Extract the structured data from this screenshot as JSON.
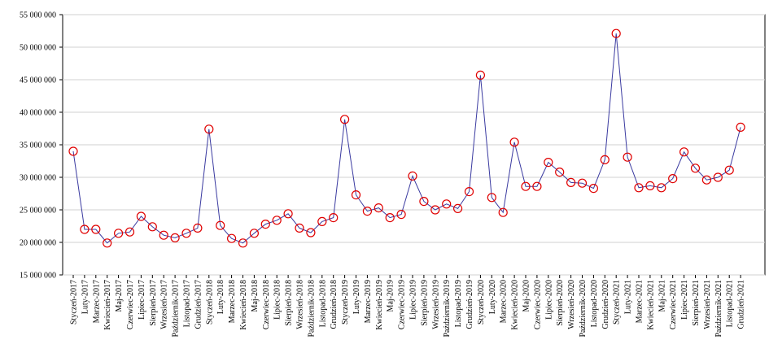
{
  "chart_data": {
    "type": "line",
    "categories": [
      "Styczeń-2017",
      "Luty-2017",
      "Marzec-2017",
      "Kwiecień-2017",
      "Maj-2017",
      "Czerwiec-2017",
      "Lipiec-2017",
      "Sierpień-2017",
      "Wrzesień-2017",
      "Październik-2017",
      "Listopad-2017",
      "Grudzień-2017",
      "Styczeń-2018",
      "Luty-2018",
      "Marzec-2018",
      "Kwiecień-2018",
      "Maj-2018",
      "Czerwiec-2018",
      "Lipiec-2018",
      "Sierpień-2018",
      "Wrzesień-2018",
      "Październik-2018",
      "Listopad-2018",
      "Grudzień-2018",
      "Styczeń-2019",
      "Luty-2019",
      "Marzec-2019",
      "Kwiecień-2019",
      "Maj-2019",
      "Czerwiec-2019",
      "Lipiec-2019",
      "Sierpień-2019",
      "Wrzesień-2019",
      "Październik-2019",
      "Listopad-2019",
      "Grudzień-2019",
      "Styczeń-2020",
      "Luty-2020",
      "Marzec-2020",
      "Kwiecień-2020",
      "Maj-2020",
      "Czerwiec-2020",
      "Lipiec-2020",
      "Sierpień-2020",
      "Wrzesień-2020",
      "Październik-2020",
      "Listopad-2020",
      "Grudzień-2020",
      "Styczeń-2021",
      "Luty-2021",
      "Marzec-2021",
      "Kwiecień-2021",
      "Maj-2021",
      "Czerwiec-2021",
      "Lipiec-2021",
      "Sierpień-2021",
      "Wrzesień-2021",
      "Październik-2021",
      "Listopad-2021",
      "Grudzień-2021"
    ],
    "values": [
      34000000,
      22000000,
      22000000,
      19900000,
      21400000,
      21600000,
      24000000,
      22400000,
      21100000,
      20700000,
      21400000,
      22200000,
      37400000,
      22600000,
      20600000,
      19900000,
      21400000,
      22800000,
      23400000,
      24400000,
      22200000,
      21500000,
      23200000,
      23800000,
      38900000,
      27300000,
      24800000,
      25300000,
      23800000,
      24300000,
      30200000,
      26300000,
      25000000,
      25900000,
      25200000,
      27800000,
      45700000,
      26900000,
      24600000,
      35400000,
      28600000,
      28600000,
      32300000,
      30800000,
      29200000,
      29100000,
      28300000,
      32700000,
      52100000,
      33100000,
      28400000,
      28700000,
      28400000,
      29800000,
      33900000,
      31400000,
      29600000,
      30000000,
      31100000,
      37700000
    ],
    "color": "#3a3aa0",
    "marker_color": "#e00000",
    "ylim": [
      15000000,
      55000000
    ],
    "yticks": [
      {
        "value": 15000000,
        "label": "15 000 000"
      },
      {
        "value": 20000000,
        "label": "20 000 000"
      },
      {
        "value": 25000000,
        "label": "25 000 000"
      },
      {
        "value": 30000000,
        "label": "30 000 000"
      },
      {
        "value": 35000000,
        "label": "35 000 000"
      },
      {
        "value": 40000000,
        "label": "40 000 000"
      },
      {
        "value": 45000000,
        "label": "45 000 000"
      },
      {
        "value": 50000000,
        "label": "50 000 000"
      },
      {
        "value": 55000000,
        "label": "55 000 000"
      }
    ],
    "grid": true
  }
}
